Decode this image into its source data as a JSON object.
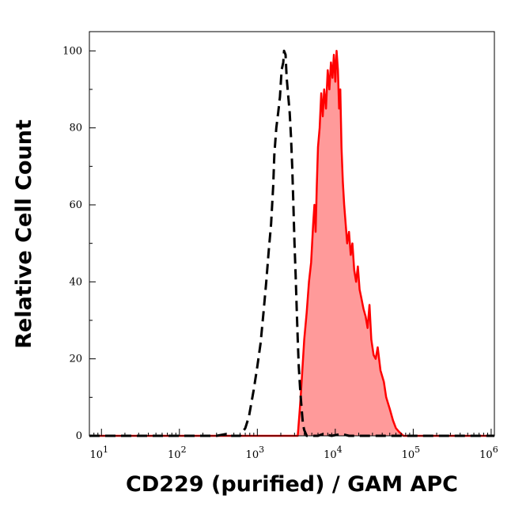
{
  "chart_data": {
    "type": "area",
    "xlabel": "CD229 (purified) / GAM APC",
    "ylabel": "Relative Cell Count",
    "x_scale": "log",
    "xlim": [
      7,
      1100000
    ],
    "ylim": [
      0,
      105
    ],
    "x_ticks": [
      {
        "base": "10",
        "exp": "1",
        "value": 10
      },
      {
        "base": "10",
        "exp": "2",
        "value": 100
      },
      {
        "base": "10",
        "exp": "3",
        "value": 1000
      },
      {
        "base": "10",
        "exp": "4",
        "value": 10000
      },
      {
        "base": "10",
        "exp": "5",
        "value": 100000
      },
      {
        "base": "10",
        "exp": "6",
        "value": 1000000
      }
    ],
    "y_ticks": [
      "0",
      "20",
      "40",
      "60",
      "80",
      "100"
    ],
    "grid": false,
    "legend": "none",
    "series": [
      {
        "style": "dashed",
        "color": "#000000",
        "fill": "none",
        "points": [
          [
            7,
            0
          ],
          [
            300,
            0
          ],
          [
            400,
            0.5
          ],
          [
            450,
            0
          ],
          [
            600,
            0
          ],
          [
            700,
            2
          ],
          [
            780,
            5
          ],
          [
            900,
            12
          ],
          [
            1000,
            18
          ],
          [
            1100,
            24
          ],
          [
            1200,
            32
          ],
          [
            1300,
            40
          ],
          [
            1400,
            48
          ],
          [
            1500,
            55
          ],
          [
            1600,
            65
          ],
          [
            1650,
            73
          ],
          [
            1750,
            80
          ],
          [
            1850,
            84
          ],
          [
            1950,
            88
          ],
          [
            2050,
            95
          ],
          [
            2150,
            97
          ],
          [
            2200,
            100
          ],
          [
            2300,
            99
          ],
          [
            2380,
            93
          ],
          [
            2500,
            88
          ],
          [
            2600,
            84
          ],
          [
            2700,
            78
          ],
          [
            2800,
            70
          ],
          [
            2900,
            60
          ],
          [
            3000,
            50
          ],
          [
            3100,
            42
          ],
          [
            3200,
            33
          ],
          [
            3300,
            25
          ],
          [
            3400,
            18
          ],
          [
            3550,
            12
          ],
          [
            3700,
            7
          ],
          [
            3850,
            3
          ],
          [
            4000,
            1.5
          ],
          [
            4300,
            0
          ],
          [
            6000,
            0
          ],
          [
            7000,
            0.5
          ],
          [
            9000,
            0
          ],
          [
            12000,
            0.5
          ],
          [
            15000,
            0
          ],
          [
            1100000,
            0
          ]
        ]
      },
      {
        "style": "solid",
        "color": "#ff0000",
        "fill": "#ff9a9a",
        "points": [
          [
            7,
            0
          ],
          [
            3300,
            0
          ],
          [
            3450,
            5
          ],
          [
            3600,
            10
          ],
          [
            3800,
            18
          ],
          [
            4000,
            25
          ],
          [
            4300,
            32
          ],
          [
            4600,
            40
          ],
          [
            4900,
            45
          ],
          [
            5200,
            55
          ],
          [
            5400,
            60
          ],
          [
            5600,
            53
          ],
          [
            5800,
            65
          ],
          [
            6000,
            75
          ],
          [
            6300,
            80
          ],
          [
            6600,
            89
          ],
          [
            6900,
            83
          ],
          [
            7200,
            90
          ],
          [
            7600,
            85
          ],
          [
            8000,
            95
          ],
          [
            8400,
            90
          ],
          [
            8800,
            97
          ],
          [
            9200,
            93
          ],
          [
            9600,
            99
          ],
          [
            10000,
            92
          ],
          [
            10400,
            100
          ],
          [
            10800,
            95
          ],
          [
            11200,
            85
          ],
          [
            11600,
            90
          ],
          [
            12000,
            75
          ],
          [
            12500,
            66
          ],
          [
            13000,
            60
          ],
          [
            13600,
            55
          ],
          [
            14200,
            50
          ],
          [
            15000,
            53
          ],
          [
            15800,
            47
          ],
          [
            16600,
            50
          ],
          [
            17500,
            43
          ],
          [
            18500,
            40
          ],
          [
            19500,
            44
          ],
          [
            20500,
            38
          ],
          [
            21500,
            36
          ],
          [
            23000,
            33
          ],
          [
            24500,
            31
          ],
          [
            26000,
            28
          ],
          [
            27500,
            34
          ],
          [
            29000,
            25
          ],
          [
            31000,
            21
          ],
          [
            33000,
            20
          ],
          [
            35000,
            23
          ],
          [
            38000,
            17
          ],
          [
            42000,
            14
          ],
          [
            45000,
            10
          ],
          [
            50000,
            7
          ],
          [
            55000,
            4
          ],
          [
            60000,
            2
          ],
          [
            66000,
            1
          ],
          [
            75000,
            0
          ],
          [
            1100000,
            0
          ]
        ]
      }
    ]
  }
}
